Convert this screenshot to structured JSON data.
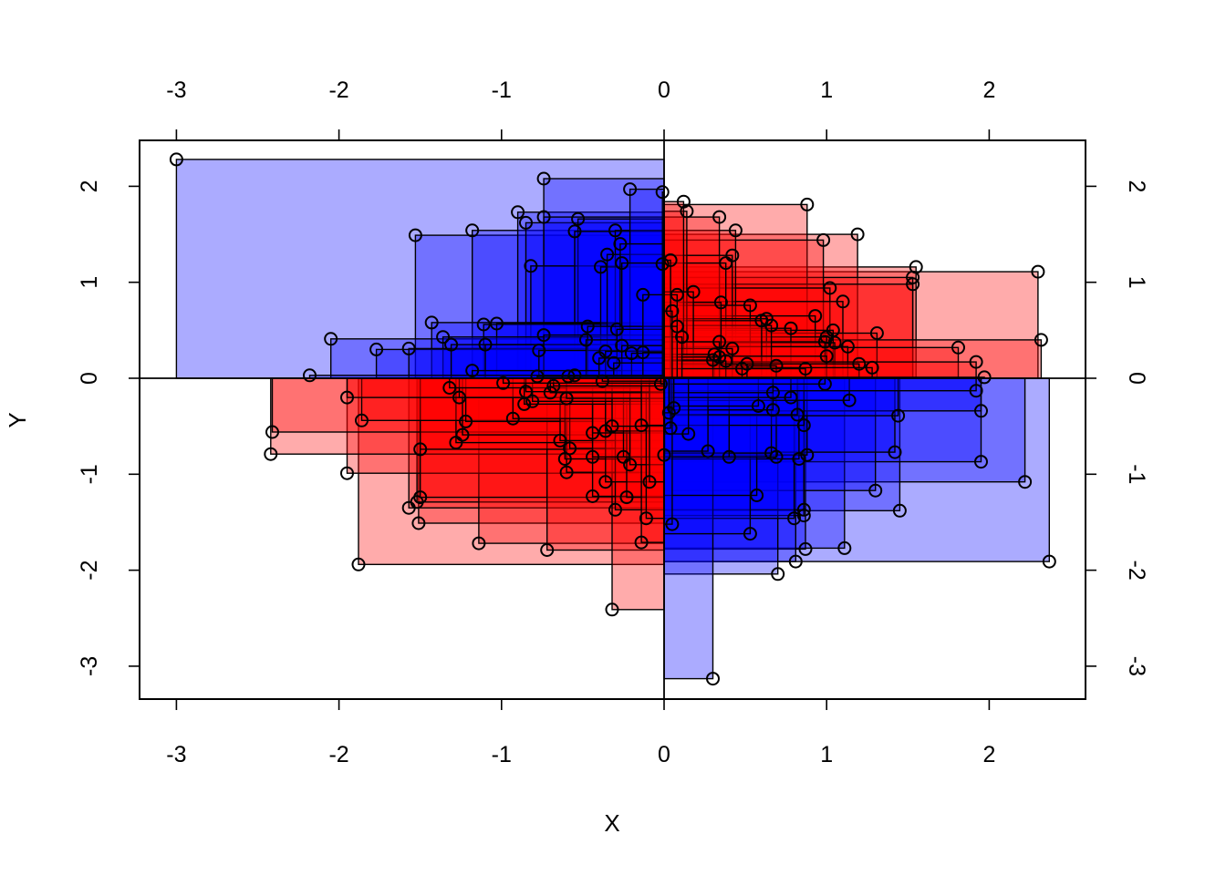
{
  "chart_data": {
    "type": "scatter",
    "title": "",
    "xlabel": "X",
    "ylabel": "Y",
    "xlim": [
      -3.0,
      2.38
    ],
    "ylim": [
      -3.13,
      2.28
    ],
    "x_ticks": [
      -3,
      -2,
      -1,
      0,
      1,
      2
    ],
    "y_ticks": [
      -3,
      -2,
      -1,
      0,
      1,
      2
    ],
    "x_tick_labels": [
      "-3",
      "-2",
      "-1",
      "0",
      "1",
      "2"
    ],
    "y_tick_labels": [
      "-3",
      "-2",
      "-1",
      "0",
      "1",
      "2"
    ],
    "grid": false,
    "legend": "none",
    "reference_lines": {
      "x": 0,
      "y": 0
    },
    "encoding": "each point is drawn with a filled rectangle spanning from the origin to the point; red when x*y > 0, blue when x*y < 0; opacity increases with overlap",
    "colors": {
      "positive": "#ff0000",
      "negative": "#0000ff",
      "point_stroke": "#000000"
    },
    "points": [
      {
        "x": -3.0,
        "y": 2.28
      },
      {
        "x": -0.74,
        "y": 2.08
      },
      {
        "x": -0.21,
        "y": 1.97
      },
      {
        "x": -0.01,
        "y": 1.94
      },
      {
        "x": 0.12,
        "y": 1.84
      },
      {
        "x": 0.88,
        "y": 1.81
      },
      {
        "x": 0.14,
        "y": 1.74
      },
      {
        "x": -0.9,
        "y": 1.73
      },
      {
        "x": -0.74,
        "y": 1.68
      },
      {
        "x": 0.34,
        "y": 1.68
      },
      {
        "x": -0.53,
        "y": 1.66
      },
      {
        "x": -0.85,
        "y": 1.62
      },
      {
        "x": 0.44,
        "y": 1.54
      },
      {
        "x": -1.18,
        "y": 1.54
      },
      {
        "x": -0.3,
        "y": 1.54
      },
      {
        "x": -0.55,
        "y": 1.53
      },
      {
        "x": 1.19,
        "y": 1.5
      },
      {
        "x": -1.53,
        "y": 1.49
      },
      {
        "x": 0.98,
        "y": 1.44
      },
      {
        "x": -0.27,
        "y": 1.4
      },
      {
        "x": -0.35,
        "y": 1.29
      },
      {
        "x": 0.42,
        "y": 1.28
      },
      {
        "x": 0.04,
        "y": 1.23
      },
      {
        "x": -0.26,
        "y": 1.2
      },
      {
        "x": 0.38,
        "y": 1.2
      },
      {
        "x": -0.01,
        "y": 1.19
      },
      {
        "x": -0.82,
        "y": 1.17
      },
      {
        "x": -0.39,
        "y": 1.16
      },
      {
        "x": 1.55,
        "y": 1.16
      },
      {
        "x": 2.3,
        "y": 1.11
      },
      {
        "x": 1.53,
        "y": 1.05
      },
      {
        "x": 1.53,
        "y": 0.98
      },
      {
        "x": 1.02,
        "y": 0.94
      },
      {
        "x": 0.18,
        "y": 0.9
      },
      {
        "x": 0.08,
        "y": 0.87
      },
      {
        "x": -0.13,
        "y": 0.87
      },
      {
        "x": 0.35,
        "y": 0.79
      },
      {
        "x": 1.1,
        "y": 0.8
      },
      {
        "x": 0.53,
        "y": 0.76
      },
      {
        "x": 0.05,
        "y": 0.7
      },
      {
        "x": 0.63,
        "y": 0.62
      },
      {
        "x": 0.93,
        "y": 0.65
      },
      {
        "x": -1.43,
        "y": 0.58
      },
      {
        "x": -1.03,
        "y": 0.57
      },
      {
        "x": -1.11,
        "y": 0.56
      },
      {
        "x": 0.6,
        "y": 0.6
      },
      {
        "x": -0.47,
        "y": 0.54
      },
      {
        "x": 0.08,
        "y": 0.54
      },
      {
        "x": 0.78,
        "y": 0.52
      },
      {
        "x": 0.66,
        "y": 0.55
      },
      {
        "x": -0.29,
        "y": 0.51
      },
      {
        "x": 1.04,
        "y": 0.5
      },
      {
        "x": 1.31,
        "y": 0.47
      },
      {
        "x": -0.74,
        "y": 0.45
      },
      {
        "x": 0.11,
        "y": 0.43
      },
      {
        "x": 1.0,
        "y": 0.43
      },
      {
        "x": -1.36,
        "y": 0.43
      },
      {
        "x": -0.48,
        "y": 0.4
      },
      {
        "x": 2.32,
        "y": 0.4
      },
      {
        "x": 0.99,
        "y": 0.38
      },
      {
        "x": -2.05,
        "y": 0.41
      },
      {
        "x": 1.05,
        "y": 0.37
      },
      {
        "x": 0.34,
        "y": 0.38
      },
      {
        "x": -1.31,
        "y": 0.35
      },
      {
        "x": -1.1,
        "y": 0.35
      },
      {
        "x": -0.26,
        "y": 0.34
      },
      {
        "x": 0.42,
        "y": 0.31
      },
      {
        "x": -1.57,
        "y": 0.31
      },
      {
        "x": -1.77,
        "y": 0.3
      },
      {
        "x": -0.77,
        "y": 0.29
      },
      {
        "x": 1.81,
        "y": 0.32
      },
      {
        "x": 1.13,
        "y": 0.33
      },
      {
        "x": -0.36,
        "y": 0.28
      },
      {
        "x": -0.13,
        "y": 0.27
      },
      {
        "x": -0.2,
        "y": 0.26
      },
      {
        "x": -0.4,
        "y": 0.21
      },
      {
        "x": 0.31,
        "y": 0.25
      },
      {
        "x": 1.0,
        "y": 0.23
      },
      {
        "x": 0.34,
        "y": 0.22
      },
      {
        "x": 0.3,
        "y": 0.19
      },
      {
        "x": 0.38,
        "y": 0.18
      },
      {
        "x": 1.92,
        "y": 0.17
      },
      {
        "x": -0.31,
        "y": 0.16
      },
      {
        "x": 0.51,
        "y": 0.15
      },
      {
        "x": 1.2,
        "y": 0.15
      },
      {
        "x": 0.69,
        "y": 0.13
      },
      {
        "x": 0.87,
        "y": 0.1
      },
      {
        "x": 0.48,
        "y": 0.1
      },
      {
        "x": 1.28,
        "y": 0.11
      },
      {
        "x": -1.18,
        "y": 0.08
      },
      {
        "x": -0.55,
        "y": 0.03
      },
      {
        "x": -0.78,
        "y": 0.02
      },
      {
        "x": 1.97,
        "y": 0.01
      },
      {
        "x": -2.18,
        "y": 0.03
      },
      {
        "x": -0.59,
        "y": 0.02
      },
      {
        "x": -0.38,
        "y": -0.03
      },
      {
        "x": -0.99,
        "y": -0.05
      },
      {
        "x": -0.02,
        "y": -0.06
      },
      {
        "x": -0.68,
        "y": -0.08
      },
      {
        "x": -1.32,
        "y": -0.1
      },
      {
        "x": 0.99,
        "y": -0.06
      },
      {
        "x": 1.92,
        "y": -0.13
      },
      {
        "x": -0.85,
        "y": -0.14
      },
      {
        "x": 0.67,
        "y": -0.15
      },
      {
        "x": -0.7,
        "y": -0.15
      },
      {
        "x": 0.78,
        "y": -0.2
      },
      {
        "x": -1.95,
        "y": -0.2
      },
      {
        "x": -1.26,
        "y": -0.2
      },
      {
        "x": -0.6,
        "y": -0.21
      },
      {
        "x": -0.81,
        "y": -0.24
      },
      {
        "x": 1.14,
        "y": -0.23
      },
      {
        "x": -0.86,
        "y": -0.27
      },
      {
        "x": 0.06,
        "y": -0.31
      },
      {
        "x": 0.58,
        "y": -0.29
      },
      {
        "x": 0.67,
        "y": -0.33
      },
      {
        "x": 0.03,
        "y": -0.36
      },
      {
        "x": 0.82,
        "y": -0.38
      },
      {
        "x": -0.93,
        "y": -0.42
      },
      {
        "x": -1.86,
        "y": -0.44
      },
      {
        "x": 1.44,
        "y": -0.39
      },
      {
        "x": 1.95,
        "y": -0.34
      },
      {
        "x": -1.22,
        "y": -0.45
      },
      {
        "x": 0.86,
        "y": -0.49
      },
      {
        "x": -0.14,
        "y": -0.49
      },
      {
        "x": -0.32,
        "y": -0.5
      },
      {
        "x": 0.04,
        "y": -0.52
      },
      {
        "x": -2.41,
        "y": -0.56
      },
      {
        "x": -0.36,
        "y": -0.55
      },
      {
        "x": -1.24,
        "y": -0.59
      },
      {
        "x": 0.15,
        "y": -0.58
      },
      {
        "x": -0.44,
        "y": -0.57
      },
      {
        "x": -0.64,
        "y": -0.65
      },
      {
        "x": -1.28,
        "y": -0.67
      },
      {
        "x": -0.58,
        "y": -0.73
      },
      {
        "x": -1.5,
        "y": -0.74
      },
      {
        "x": 0.27,
        "y": -0.76
      },
      {
        "x": 1.42,
        "y": -0.77
      },
      {
        "x": 0.66,
        "y": -0.78
      },
      {
        "x": 0.0,
        "y": -0.8
      },
      {
        "x": 0.4,
        "y": -0.82
      },
      {
        "x": 0.88,
        "y": -0.8
      },
      {
        "x": -2.42,
        "y": -0.79
      },
      {
        "x": 0.69,
        "y": -0.82
      },
      {
        "x": 0.83,
        "y": -0.84
      },
      {
        "x": -0.61,
        "y": -0.84
      },
      {
        "x": -0.44,
        "y": -0.82
      },
      {
        "x": -0.25,
        "y": -0.82
      },
      {
        "x": -0.21,
        "y": -0.9
      },
      {
        "x": 1.95,
        "y": -0.87
      },
      {
        "x": -0.6,
        "y": -0.98
      },
      {
        "x": -1.95,
        "y": -0.99
      },
      {
        "x": -0.09,
        "y": -1.08
      },
      {
        "x": -0.36,
        "y": -1.08
      },
      {
        "x": 2.22,
        "y": -1.08
      },
      {
        "x": 1.3,
        "y": -1.17
      },
      {
        "x": 0.57,
        "y": -1.22
      },
      {
        "x": -0.44,
        "y": -1.23
      },
      {
        "x": -0.23,
        "y": -1.24
      },
      {
        "x": -1.5,
        "y": -1.24
      },
      {
        "x": -1.52,
        "y": -1.29
      },
      {
        "x": -1.57,
        "y": -1.35
      },
      {
        "x": -0.3,
        "y": -1.37
      },
      {
        "x": 1.45,
        "y": -1.38
      },
      {
        "x": 0.86,
        "y": -1.37
      },
      {
        "x": 0.86,
        "y": -1.43
      },
      {
        "x": 0.8,
        "y": -1.46
      },
      {
        "x": -0.11,
        "y": -1.46
      },
      {
        "x": -1.51,
        "y": -1.51
      },
      {
        "x": 0.05,
        "y": -1.52
      },
      {
        "x": 0.53,
        "y": -1.62
      },
      {
        "x": -0.14,
        "y": -1.71
      },
      {
        "x": -1.14,
        "y": -1.72
      },
      {
        "x": 1.11,
        "y": -1.77
      },
      {
        "x": 0.87,
        "y": -1.78
      },
      {
        "x": -0.72,
        "y": -1.79
      },
      {
        "x": 2.37,
        "y": -1.91
      },
      {
        "x": 0.81,
        "y": -1.91
      },
      {
        "x": -1.88,
        "y": -1.94
      },
      {
        "x": 0.7,
        "y": -2.04
      },
      {
        "x": -0.32,
        "y": -2.41
      },
      {
        "x": 0.3,
        "y": -3.13
      }
    ]
  }
}
